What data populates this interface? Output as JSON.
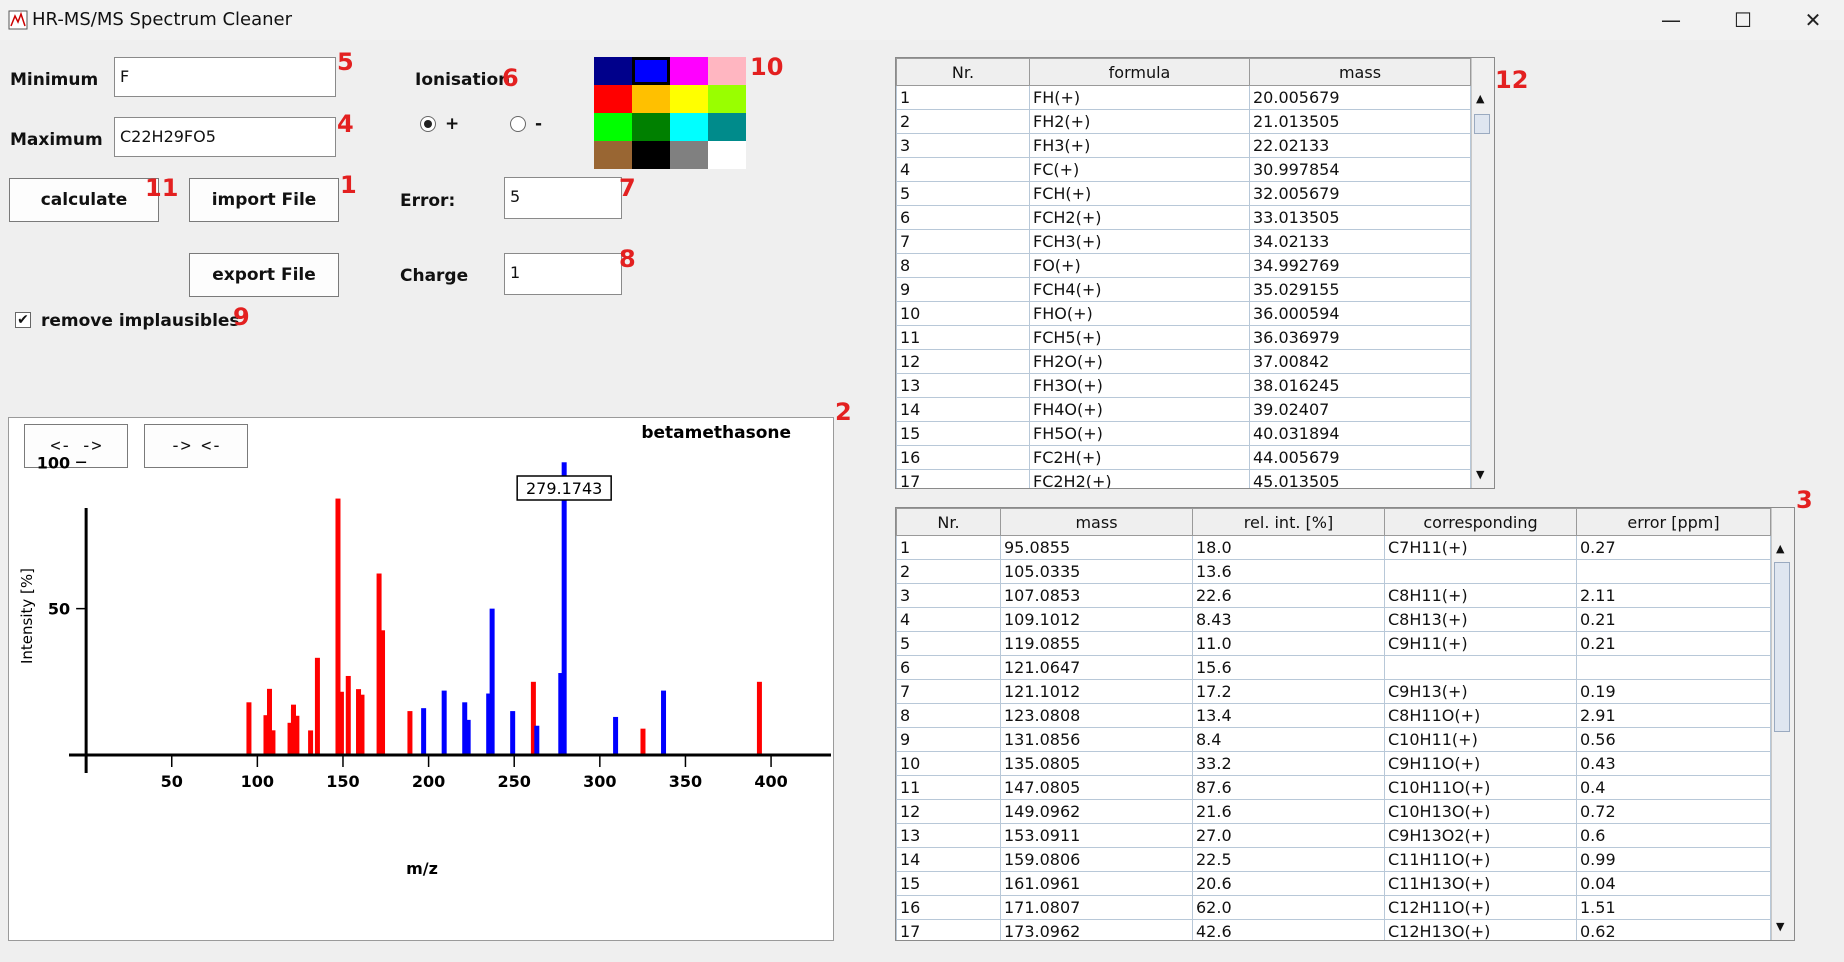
{
  "window": {
    "title": "HR-MS/MS Spectrum Cleaner",
    "minimize": "—",
    "maximize": "☐",
    "close": "✕"
  },
  "form": {
    "minimum_label": "Minimum",
    "minimum_value": "F",
    "maximum_label": "Maximum",
    "maximum_value": "C22H29FO5",
    "ionisation_label": "Ionisation",
    "plus_label": "+",
    "minus_label": "-",
    "ionisation_selected": "+",
    "calculate_label": "calculate",
    "import_label": "import File",
    "export_label": "export File",
    "error_label": "Error:",
    "error_value": "5",
    "charge_label": "Charge",
    "charge_value": "1",
    "remove_label": "remove implausibles",
    "remove_checked": true
  },
  "palette": [
    "#00008b",
    "#0000ff",
    "#ff00ff",
    "#ffb6c1",
    "#ff0000",
    "#ffc000",
    "#ffff00",
    "#99ff00",
    "#00ff00",
    "#008000",
    "#00ffff",
    "#008b8b",
    "#996633",
    "#000000",
    "#808080",
    "#ffffff"
  ],
  "palette_selected": 1,
  "markers": [
    "1",
    "2",
    "3",
    "4",
    "5",
    "6",
    "7",
    "8",
    "9",
    "10",
    "11",
    "12"
  ],
  "chart_buttons": {
    "expand": "<-  ->",
    "shrink": "-> <-"
  },
  "chart_data": {
    "type": "bar",
    "title": "betamethasone",
    "xlabel": "m/z",
    "ylabel": "Intensity [%]",
    "xlim": [
      -10,
      435
    ],
    "ylim": [
      0,
      110
    ],
    "xticks": [
      50,
      100,
      150,
      200,
      250,
      300,
      350,
      400
    ],
    "yticks": [
      50,
      100
    ],
    "highlight_label": "279.1743",
    "series": [
      {
        "color": "#ff0000",
        "points": [
          [
            95.0855,
            18
          ],
          [
            105.0335,
            13.6
          ],
          [
            107.0853,
            22.6
          ],
          [
            109.1012,
            8.43
          ],
          [
            119.0855,
            11
          ],
          [
            121.0647,
            15.6
          ],
          [
            121.1012,
            17.2
          ],
          [
            123.0808,
            13.4
          ],
          [
            131.0856,
            8.4
          ],
          [
            135.0805,
            33.2
          ],
          [
            147.0805,
            87.6
          ],
          [
            149.0962,
            21.6
          ],
          [
            153.0911,
            27
          ],
          [
            159.0806,
            22.5
          ],
          [
            161.0961,
            20.6
          ],
          [
            171.0807,
            62
          ],
          [
            173.0962,
            42.6
          ],
          [
            189.1,
            15
          ],
          [
            261.2,
            25
          ],
          [
            325.2,
            9
          ],
          [
            393.2,
            25
          ]
        ]
      },
      {
        "color": "#0000ff",
        "points": [
          [
            197.1,
            16
          ],
          [
            209.1,
            22
          ],
          [
            221.1,
            18
          ],
          [
            223.1,
            12
          ],
          [
            235.1,
            21
          ],
          [
            237.1,
            50
          ],
          [
            249.1,
            15
          ],
          [
            263.2,
            10
          ],
          [
            277.2,
            28
          ],
          [
            279.1743,
            100
          ],
          [
            309.2,
            13
          ],
          [
            337.2,
            22
          ]
        ]
      }
    ]
  },
  "formula_table": {
    "columns": [
      "Nr.",
      "formula",
      "mass"
    ],
    "rows": [
      [
        "1",
        "FH(+)",
        "20.005679"
      ],
      [
        "2",
        "FH2(+)",
        "21.013505"
      ],
      [
        "3",
        "FH3(+)",
        "22.02133"
      ],
      [
        "4",
        "FC(+)",
        "30.997854"
      ],
      [
        "5",
        "FCH(+)",
        "32.005679"
      ],
      [
        "6",
        "FCH2(+)",
        "33.013505"
      ],
      [
        "7",
        "FCH3(+)",
        "34.02133"
      ],
      [
        "8",
        "FO(+)",
        "34.992769"
      ],
      [
        "9",
        "FCH4(+)",
        "35.029155"
      ],
      [
        "10",
        "FHO(+)",
        "36.000594"
      ],
      [
        "11",
        "FCH5(+)",
        "36.036979"
      ],
      [
        "12",
        "FH2O(+)",
        "37.00842"
      ],
      [
        "13",
        "FH3O(+)",
        "38.016245"
      ],
      [
        "14",
        "FH4O(+)",
        "39.02407"
      ],
      [
        "15",
        "FH5O(+)",
        "40.031894"
      ],
      [
        "16",
        "FC2H(+)",
        "44.005679"
      ],
      [
        "17",
        "FC2H2(+)",
        "45.013505"
      ]
    ]
  },
  "peak_table": {
    "columns": [
      "Nr.",
      "mass",
      "rel. int. [%]",
      "corresponding",
      "error [ppm]"
    ],
    "rows": [
      [
        "1",
        "95.0855",
        "18.0",
        "C7H11(+)",
        "0.27"
      ],
      [
        "2",
        "105.0335",
        "13.6",
        "",
        ""
      ],
      [
        "3",
        "107.0853",
        "22.6",
        "C8H11(+)",
        "2.11"
      ],
      [
        "4",
        "109.1012",
        "8.43",
        "C8H13(+)",
        "0.21"
      ],
      [
        "5",
        "119.0855",
        "11.0",
        "C9H11(+)",
        "0.21"
      ],
      [
        "6",
        "121.0647",
        "15.6",
        "",
        ""
      ],
      [
        "7",
        "121.1012",
        "17.2",
        "C9H13(+)",
        "0.19"
      ],
      [
        "8",
        "123.0808",
        "13.4",
        "C8H11O(+)",
        "2.91"
      ],
      [
        "9",
        "131.0856",
        "8.4",
        "C10H11(+)",
        "0.56"
      ],
      [
        "10",
        "135.0805",
        "33.2",
        "C9H11O(+)",
        "0.43"
      ],
      [
        "11",
        "147.0805",
        "87.6",
        "C10H11O(+)",
        "0.4"
      ],
      [
        "12",
        "149.0962",
        "21.6",
        "C10H13O(+)",
        "0.72"
      ],
      [
        "13",
        "153.0911",
        "27.0",
        "C9H13O2(+)",
        "0.6"
      ],
      [
        "14",
        "159.0806",
        "22.5",
        "C11H11O(+)",
        "0.99"
      ],
      [
        "15",
        "161.0961",
        "20.6",
        "C11H13O(+)",
        "0.04"
      ],
      [
        "16",
        "171.0807",
        "62.0",
        "C12H11O(+)",
        "1.51"
      ],
      [
        "17",
        "173.0962",
        "42.6",
        "C12H13O(+)",
        "0.62"
      ]
    ]
  }
}
